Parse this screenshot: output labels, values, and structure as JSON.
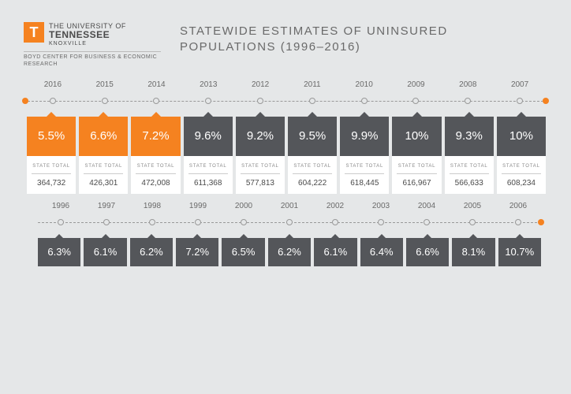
{
  "logo": {
    "letter": "T",
    "line1": "THE UNIVERSITY OF",
    "line2": "TENNESSEE",
    "line3": "KNOXVILLE",
    "sub": "BOYD CENTER FOR BUSINESS &\nECONOMIC RESEARCH"
  },
  "title": "STATEWIDE ESTIMATES OF UNINSURED POPULATIONS\n(1996–2016)",
  "state_total_label": "STATE TOTAL",
  "colors": {
    "accent": "#f58220",
    "dark": "#54565a",
    "bg": "#e5e7e8",
    "text": "#6a6a6a"
  },
  "row1": {
    "years": [
      "2016",
      "2015",
      "2014",
      "2013",
      "2012",
      "2011",
      "2010",
      "2009",
      "2008",
      "2007"
    ],
    "pct": [
      "5.5%",
      "6.6%",
      "7.2%",
      "9.6%",
      "9.2%",
      "9.5%",
      "9.9%",
      "10%",
      "9.3%",
      "10%"
    ],
    "highlight": [
      true,
      true,
      true,
      false,
      false,
      false,
      false,
      false,
      false,
      false
    ],
    "totals": [
      "364,732",
      "426,301",
      "472,008",
      "611,368",
      "577,813",
      "604,222",
      "618,445",
      "616,967",
      "566,633",
      "608,234"
    ]
  },
  "row2": {
    "years": [
      "1996",
      "1997",
      "1998",
      "1999",
      "2000",
      "2001",
      "2002",
      "2003",
      "2004",
      "2005",
      "2006"
    ],
    "pct": [
      "6.3%",
      "6.1%",
      "6.2%",
      "7.2%",
      "6.5%",
      "6.2%",
      "6.1%",
      "6.4%",
      "6.6%",
      "8.1%",
      "10.7%"
    ]
  }
}
